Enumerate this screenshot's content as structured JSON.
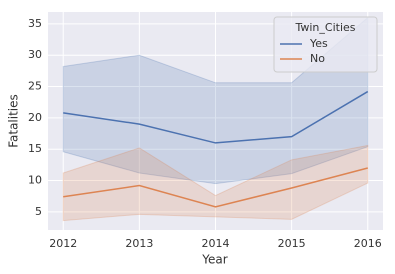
{
  "chart_data": {
    "type": "line",
    "x_label": "Year",
    "y_label": "Fatalities",
    "x": [
      2012,
      2013,
      2014,
      2015,
      2016
    ],
    "xlim": [
      2011.8,
      2016.2
    ],
    "xticks": [
      2012,
      2013,
      2014,
      2015,
      2016
    ],
    "ylim": [
      2.1,
      36.9
    ],
    "yticks": [
      5,
      10,
      15,
      20,
      25,
      30,
      35
    ],
    "grid": true,
    "legend": "upper right",
    "legend_title": "Twin_Cities",
    "series": [
      {
        "name": "Yes",
        "color": "#4c72b0",
        "values": [
          20.8,
          19.0,
          16.0,
          17.0,
          24.2
        ],
        "ci_lower": [
          14.6,
          11.2,
          9.5,
          11.1,
          15.4
        ],
        "ci_upper": [
          28.2,
          30.0,
          25.6,
          25.6,
          36.0
        ]
      },
      {
        "name": "No",
        "color": "#dd8452",
        "values": [
          7.4,
          9.2,
          5.8,
          8.8,
          12.0
        ],
        "ci_lower": [
          3.6,
          4.6,
          4.2,
          3.8,
          9.6
        ],
        "ci_upper": [
          11.2,
          15.2,
          7.6,
          13.3,
          15.6
        ]
      }
    ]
  }
}
